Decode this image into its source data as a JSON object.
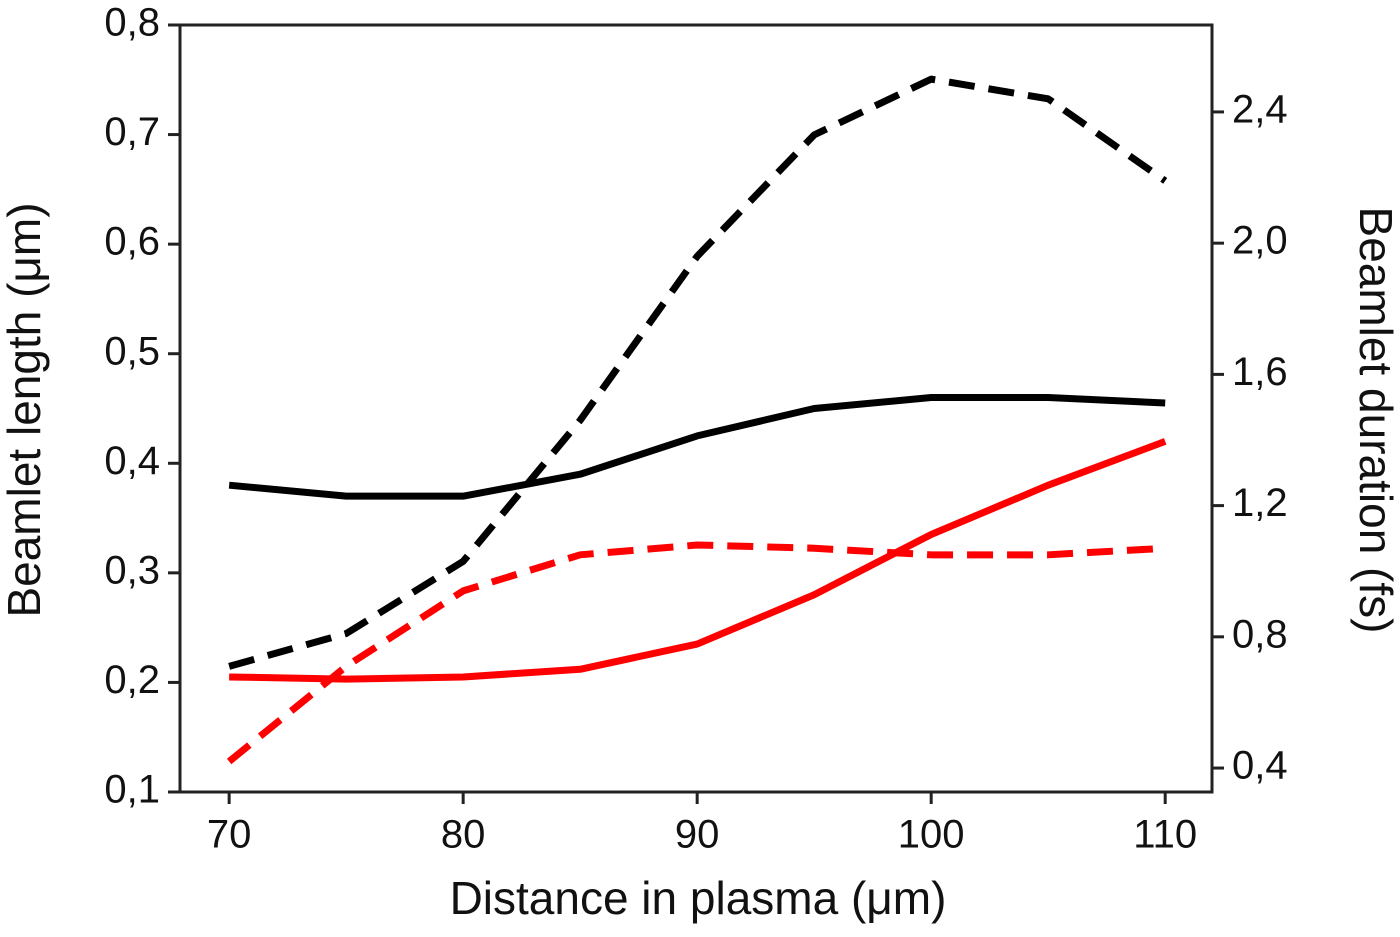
{
  "chart_data": {
    "type": "line",
    "x_label": "Distance in plasma (μm)",
    "y_label": "Beamlet length (μm)",
    "y2_label": "Beamlet duration (fs)",
    "x": [
      70,
      75,
      80,
      85,
      90,
      95,
      100,
      105,
      110
    ],
    "series": [
      {
        "color": "#000000",
        "style": "solid",
        "values": [
          0.38,
          0.37,
          0.37,
          0.39,
          0.425,
          0.45,
          0.46,
          0.46,
          0.455
        ]
      },
      {
        "color": "#ff0000",
        "style": "solid",
        "values": [
          0.205,
          0.203,
          0.205,
          0.212,
          0.235,
          0.28,
          0.335,
          0.38,
          0.42
        ]
      },
      {
        "color": "#000000",
        "style": "dashed",
        "axis": "y2",
        "values": [
          0.71,
          0.81,
          1.03,
          1.46,
          1.96,
          2.33,
          2.5,
          2.44,
          2.19
        ]
      },
      {
        "color": "#ff0000",
        "style": "dashed",
        "axis": "y2",
        "values": [
          0.42,
          0.71,
          0.94,
          1.05,
          1.08,
          1.07,
          1.05,
          1.05,
          1.07
        ]
      }
    ],
    "xlim": [
      67.9,
      112
    ],
    "xticks": [
      70,
      80,
      90,
      100,
      110
    ],
    "ylim": [
      0.1,
      0.8
    ],
    "yticks": [
      {
        "value": 0.1,
        "label": "0,1"
      },
      {
        "value": 0.2,
        "label": "0,2"
      },
      {
        "value": 0.3,
        "label": "0,3"
      },
      {
        "value": 0.4,
        "label": "0,4"
      },
      {
        "value": 0.5,
        "label": "0,5"
      },
      {
        "value": 0.6,
        "label": "0,6"
      },
      {
        "value": 0.7,
        "label": "0,7"
      },
      {
        "value": 0.8,
        "label": "0,8"
      }
    ],
    "y2lim": [
      0.327,
      2.665
    ],
    "y2ticks": [
      {
        "value": 0.4,
        "label": "0,4"
      },
      {
        "value": 0.8,
        "label": "0,8"
      },
      {
        "value": 1.2,
        "label": "1,2"
      },
      {
        "value": 1.6,
        "label": "1,6"
      },
      {
        "value": 2.0,
        "label": "2,0"
      },
      {
        "value": 2.4,
        "label": "2,4"
      }
    ],
    "grid": false
  }
}
